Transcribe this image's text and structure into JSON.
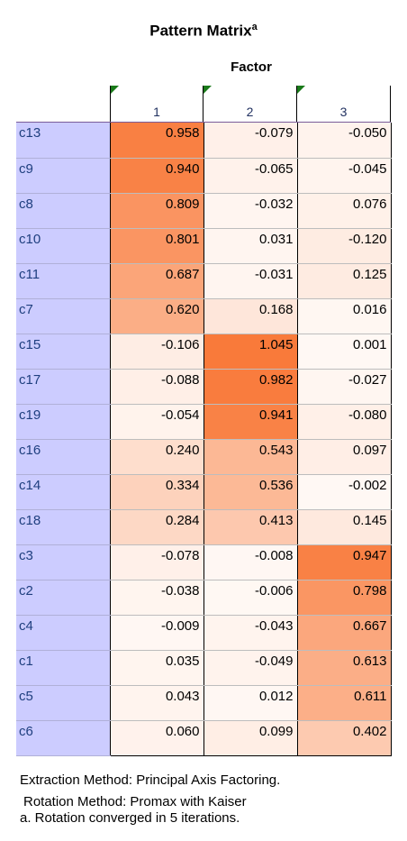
{
  "title": {
    "text": "Pattern Matrix",
    "superscript": "a"
  },
  "factor_header": "Factor",
  "columns": [
    "1",
    "2",
    "3"
  ],
  "colors": {
    "label_bg": "#ccccff",
    "heat_max": "#f97a3a",
    "heat_min": "#fff8f4"
  },
  "rows": [
    {
      "label": "c13",
      "values": [
        "0.958",
        "-0.079",
        "-0.050"
      ]
    },
    {
      "label": "c9",
      "values": [
        "0.940",
        "-0.065",
        "-0.045"
      ]
    },
    {
      "label": "c8",
      "values": [
        "0.809",
        "-0.032",
        "0.076"
      ]
    },
    {
      "label": "c10",
      "values": [
        "0.801",
        "0.031",
        "-0.120"
      ]
    },
    {
      "label": "c11",
      "values": [
        "0.687",
        "-0.031",
        "0.125"
      ]
    },
    {
      "label": "c7",
      "values": [
        "0.620",
        "0.168",
        "0.016"
      ]
    },
    {
      "label": "c15",
      "values": [
        "-0.106",
        "1.045",
        "0.001"
      ]
    },
    {
      "label": "c17",
      "values": [
        "-0.088",
        "0.982",
        "-0.027"
      ]
    },
    {
      "label": "c19",
      "values": [
        "-0.054",
        "0.941",
        "-0.080"
      ]
    },
    {
      "label": "c16",
      "values": [
        "0.240",
        "0.543",
        "0.097"
      ]
    },
    {
      "label": "c14",
      "values": [
        "0.334",
        "0.536",
        "-0.002"
      ]
    },
    {
      "label": "c18",
      "values": [
        "0.284",
        "0.413",
        "0.145"
      ]
    },
    {
      "label": "c3",
      "values": [
        "-0.078",
        "-0.008",
        "0.947"
      ]
    },
    {
      "label": "c2",
      "values": [
        "-0.038",
        "-0.006",
        "0.798"
      ]
    },
    {
      "label": "c4",
      "values": [
        "-0.009",
        "-0.043",
        "0.667"
      ]
    },
    {
      "label": "c1",
      "values": [
        "0.035",
        "-0.049",
        "0.613"
      ]
    },
    {
      "label": "c5",
      "values": [
        "0.043",
        "0.012",
        "0.611"
      ]
    },
    {
      "label": "c6",
      "values": [
        "0.060",
        "0.099",
        "0.402"
      ]
    }
  ],
  "footnotes": [
    "Extraction Method: Principal Axis Factoring.",
    " Rotation Method: Promax with Kaiser",
    "a. Rotation converged in 5 iterations."
  ]
}
